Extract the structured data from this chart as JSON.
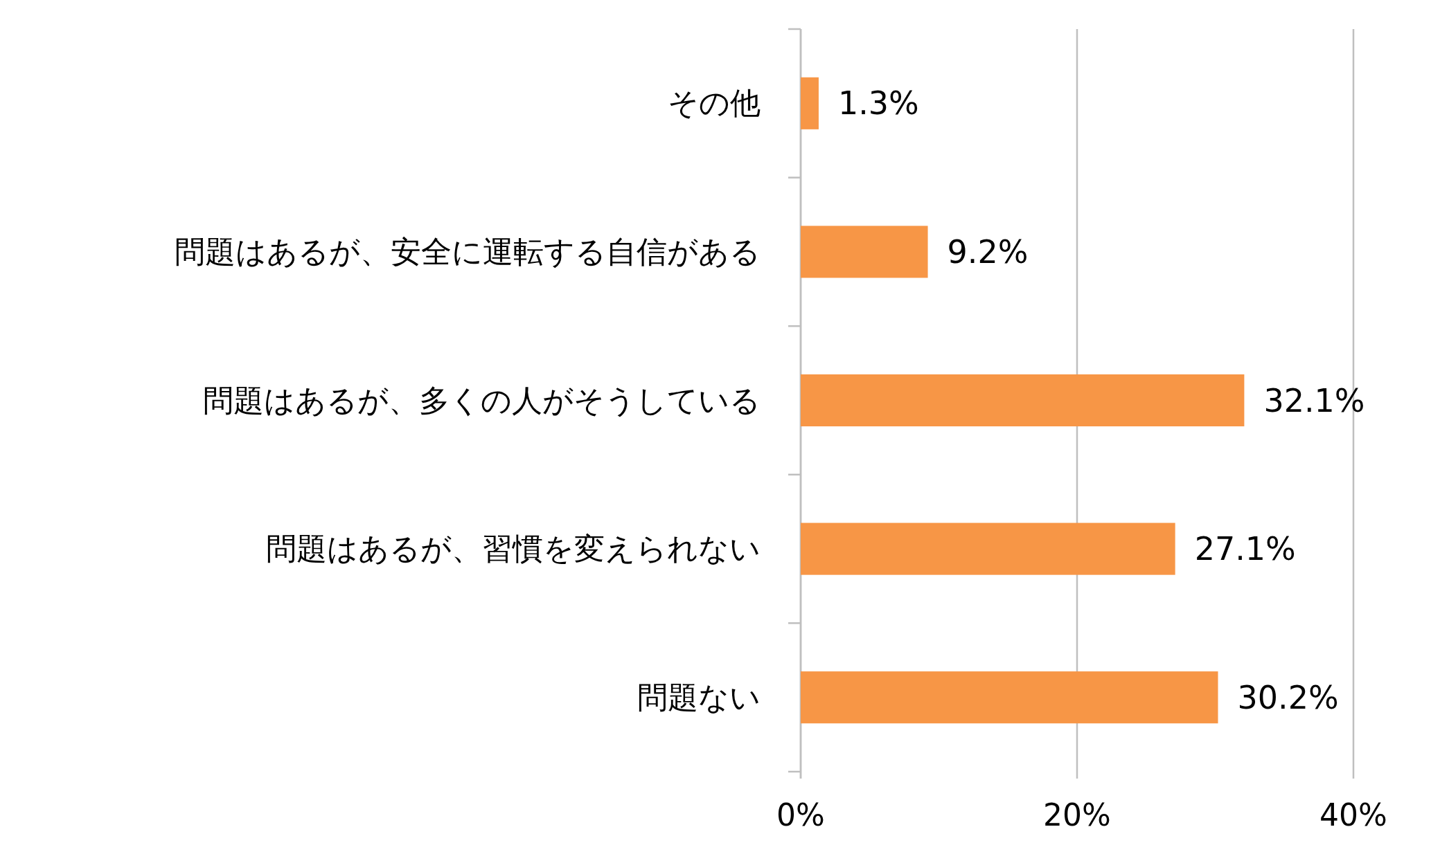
{
  "chart_data": {
    "type": "bar",
    "orientation": "horizontal",
    "categories": [
      "その他",
      "問題はあるが、安全に運転する自信がある",
      "問題はあるが、多くの人がそうしている",
      "問題はあるが、習慣を変えられない",
      "問題ない"
    ],
    "values": [
      1.3,
      9.2,
      32.1,
      27.1,
      30.2
    ],
    "value_labels": [
      "1.3%",
      "9.2%",
      "32.1%",
      "27.1%",
      "30.2%"
    ],
    "color": "#f79646",
    "xlim": [
      0,
      40
    ],
    "xticks": [
      {
        "value": 0,
        "label": "0%"
      },
      {
        "value": 20,
        "label": "20%"
      },
      {
        "value": 40,
        "label": "40%"
      }
    ],
    "grid": "x"
  }
}
